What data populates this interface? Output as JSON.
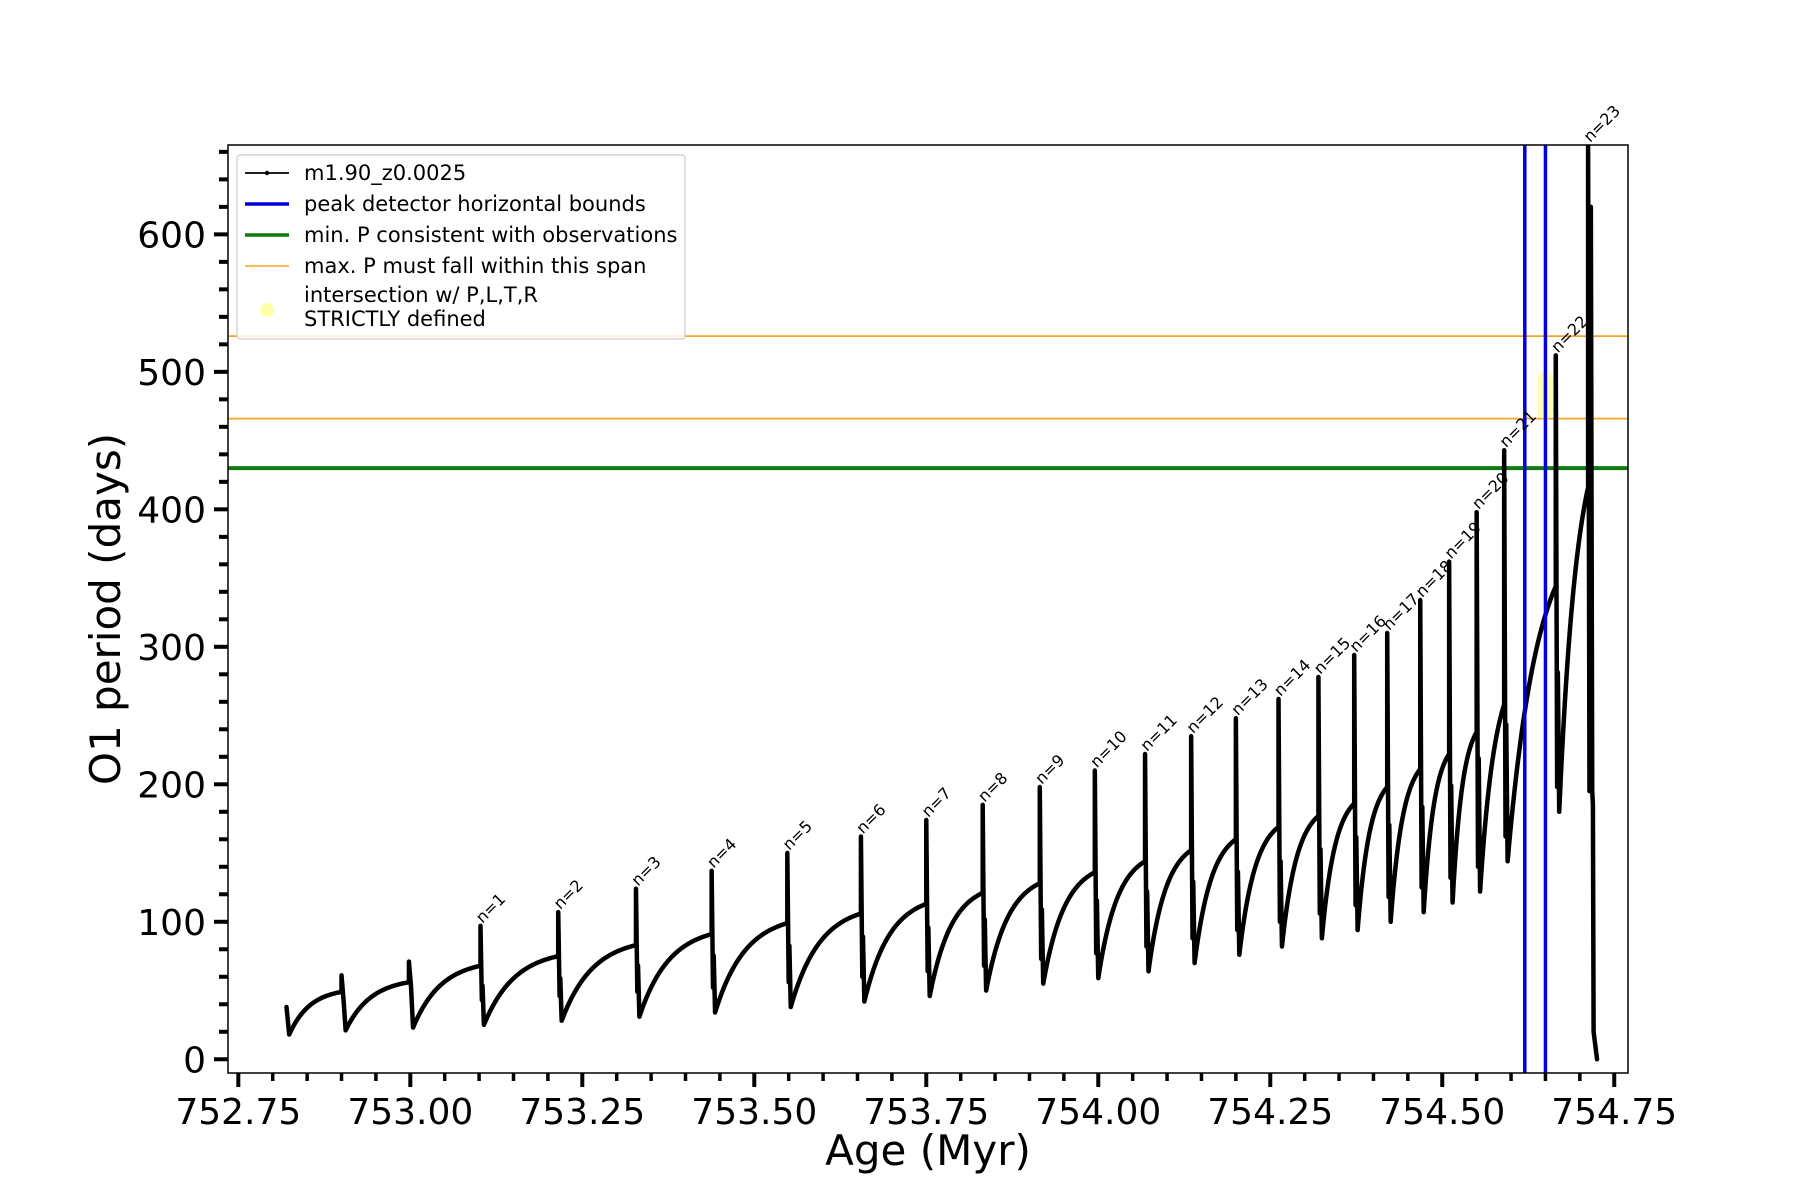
{
  "chart_data": {
    "type": "line",
    "xlabel": "Age (Myr)",
    "ylabel": "O1 period (days)",
    "xlim": [
      752.735,
      754.77
    ],
    "ylim": [
      -10,
      665
    ],
    "xticks": [
      752.75,
      753.0,
      753.25,
      753.5,
      753.75,
      754.0,
      754.25,
      754.5,
      754.75
    ],
    "xtick_labels": [
      "752.75",
      "753.00",
      "753.25",
      "753.50",
      "753.75",
      "754.00",
      "754.25",
      "754.50",
      "754.75"
    ],
    "yticks": [
      0,
      100,
      200,
      300,
      400,
      500,
      600
    ],
    "ytick_labels": [
      "0",
      "100",
      "200",
      "300",
      "400",
      "500",
      "600"
    ],
    "grid": false,
    "legend": {
      "placement": "upper-left",
      "entries": [
        {
          "label": "m1.90_z0.0025",
          "color": "#000000",
          "style": "line-marker"
        },
        {
          "label": "peak detector horizontal bounds",
          "color": "#0000dd",
          "style": "line"
        },
        {
          "label": "min. P consistent with observations",
          "color": "#107a10",
          "style": "line"
        },
        {
          "label": "max. P must fall within this span",
          "color": "#f5a623",
          "style": "line"
        },
        {
          "label_lines": [
            "intersection w/ P,L,T,R",
            "STRICTLY defined"
          ],
          "color": "#ffffa8",
          "style": "dot"
        }
      ]
    },
    "series": [
      {
        "name": "m1.90_z0.0025",
        "color": "#000000",
        "start": {
          "x": 752.82,
          "y": 38,
          "trough": 18
        },
        "pulses": [
          {
            "n": 1,
            "x": 753.102,
            "top": 68,
            "spike": 97,
            "trough": 25
          },
          {
            "n": 2,
            "x": 753.215,
            "top": 75,
            "spike": 107,
            "trough": 28
          },
          {
            "n": 3,
            "x": 753.328,
            "top": 83,
            "spike": 124,
            "trough": 31
          },
          {
            "n": 4,
            "x": 753.438,
            "top": 91,
            "spike": 137,
            "trough": 34
          },
          {
            "n": 5,
            "x": 753.548,
            "top": 99,
            "spike": 150,
            "trough": 38
          },
          {
            "n": 6,
            "x": 753.655,
            "top": 106,
            "spike": 162,
            "trough": 42
          },
          {
            "n": 7,
            "x": 753.75,
            "top": 113,
            "spike": 174,
            "trough": 46
          },
          {
            "n": 8,
            "x": 753.832,
            "top": 121,
            "spike": 185,
            "trough": 50
          },
          {
            "n": 9,
            "x": 753.915,
            "top": 128,
            "spike": 198,
            "trough": 55
          },
          {
            "n": 10,
            "x": 753.995,
            "top": 136,
            "spike": 210,
            "trough": 59
          },
          {
            "n": 11,
            "x": 754.068,
            "top": 144,
            "spike": 222,
            "trough": 64
          },
          {
            "n": 12,
            "x": 754.135,
            "top": 152,
            "spike": 235,
            "trough": 70
          },
          {
            "n": 13,
            "x": 754.2,
            "top": 160,
            "spike": 248,
            "trough": 76
          },
          {
            "n": 14,
            "x": 754.262,
            "top": 169,
            "spike": 262,
            "trough": 82
          },
          {
            "n": 15,
            "x": 754.32,
            "top": 177,
            "spike": 278,
            "trough": 88
          },
          {
            "n": 16,
            "x": 754.372,
            "top": 186,
            "spike": 294,
            "trough": 94
          },
          {
            "n": 17,
            "x": 754.42,
            "top": 198,
            "spike": 310,
            "trough": 100
          },
          {
            "n": 18,
            "x": 754.468,
            "top": 211,
            "spike": 334,
            "trough": 107
          },
          {
            "n": 19,
            "x": 754.51,
            "top": 222,
            "spike": 362,
            "trough": 114
          },
          {
            "n": 20,
            "x": 754.55,
            "top": 238,
            "spike": 398,
            "trough": 122
          },
          {
            "n": 21,
            "x": 754.59,
            "top": 258,
            "spike": 443,
            "trough": 144
          },
          {
            "n": 22,
            "x": 754.665,
            "top": 344,
            "spike": 512,
            "trough": 180
          },
          {
            "n": 23,
            "x": 754.712,
            "top": 416,
            "spike": 665,
            "trough": 195
          }
        ],
        "pre_spike_dips": [
          {
            "before": 1,
            "y": 30
          },
          {
            "before": 2,
            "y": 33
          }
        ],
        "end": {
          "x": 754.725,
          "y": 0
        }
      }
    ],
    "vertical_lines": [
      {
        "x": 754.62,
        "color": "#0000dd"
      },
      {
        "x": 754.65,
        "color": "#0000dd"
      }
    ],
    "horizontal_lines": [
      {
        "y": 430,
        "color": "#107a10",
        "kind": "min"
      },
      {
        "y": 466,
        "color": "#f5a623",
        "kind": "max"
      },
      {
        "y": 526,
        "color": "#f5a623",
        "kind": "max"
      }
    ],
    "intersection": {
      "x": 754.65,
      "y_range": [
        466,
        500
      ],
      "color": "#ffffa8"
    }
  }
}
